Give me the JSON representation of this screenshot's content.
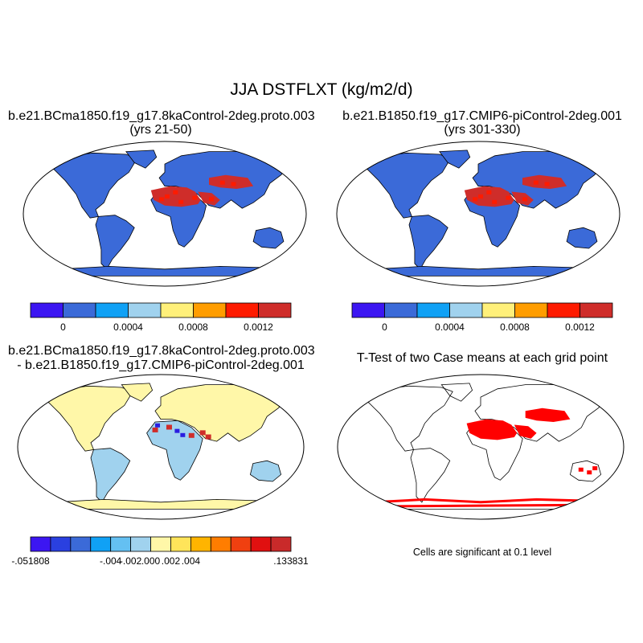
{
  "title": "JJA DSTFLXT (kg/m2/d)",
  "panels": [
    {
      "id": "case1",
      "title_lines": [
        "b.e21.BCma1850.f19_g17.8kaControl-2deg.proto.003",
        "(yrs 21-50)"
      ],
      "variant": "case1"
    },
    {
      "id": "case2",
      "title_lines": [
        "b.e21.B1850.f19_g17.CMIP6-piControl-2deg.001",
        "(yrs 301-330)"
      ],
      "variant": "case2"
    },
    {
      "id": "diff",
      "title_lines": [
        "b.e21.BCma1850.f19_g17.8kaControl-2deg.proto.003",
        "- b.e21.B1850.f19_g17.CMIP6-piControl-2deg.001"
      ],
      "variant": "diff"
    },
    {
      "id": "ttest",
      "title_lines": [
        "T-Test of two Case means at each grid point"
      ],
      "variant": "ttest",
      "note": "Cells are significant at 0.1 level"
    }
  ],
  "colorbars": {
    "case": {
      "colors": [
        "#3c16f2",
        "#3b6ad8",
        "#10a1f5",
        "#a0d2ee",
        "#fff07a",
        "#ff9d00",
        "#fe1b00",
        "#cf2d2a"
      ],
      "labels": [
        "0",
        "0.0004",
        "0.0008",
        "0.0012"
      ]
    },
    "diff": {
      "colors": [
        "#3c16f2",
        "#2a40e0",
        "#3b6ad8",
        "#10a1f5",
        "#64c0f2",
        "#a0d2ee",
        "#fff7a8",
        "#ffe45a",
        "#ffb400",
        "#ff7d00",
        "#f04010",
        "#e01010",
        "#c92a2a"
      ],
      "labels": [
        "-.051808",
        "-.004",
        "-.002",
        ".000",
        ".002",
        ".004",
        ".133831"
      ]
    }
  },
  "map_colors": {
    "ocean": "#ffffff",
    "coast": "#000000",
    "case_land": "#3b6ad8",
    "case_dust_high": "#cf2d2a",
    "case_dust_mid": "#fe1b00",
    "diff_land": "#fff7a8",
    "diff_neg_small": "#a0d2ee",
    "diff_pos_high": "#cf2d2a",
    "diff_neg_high": "#2a1ee0",
    "ttest_sig": "#ff0000"
  }
}
